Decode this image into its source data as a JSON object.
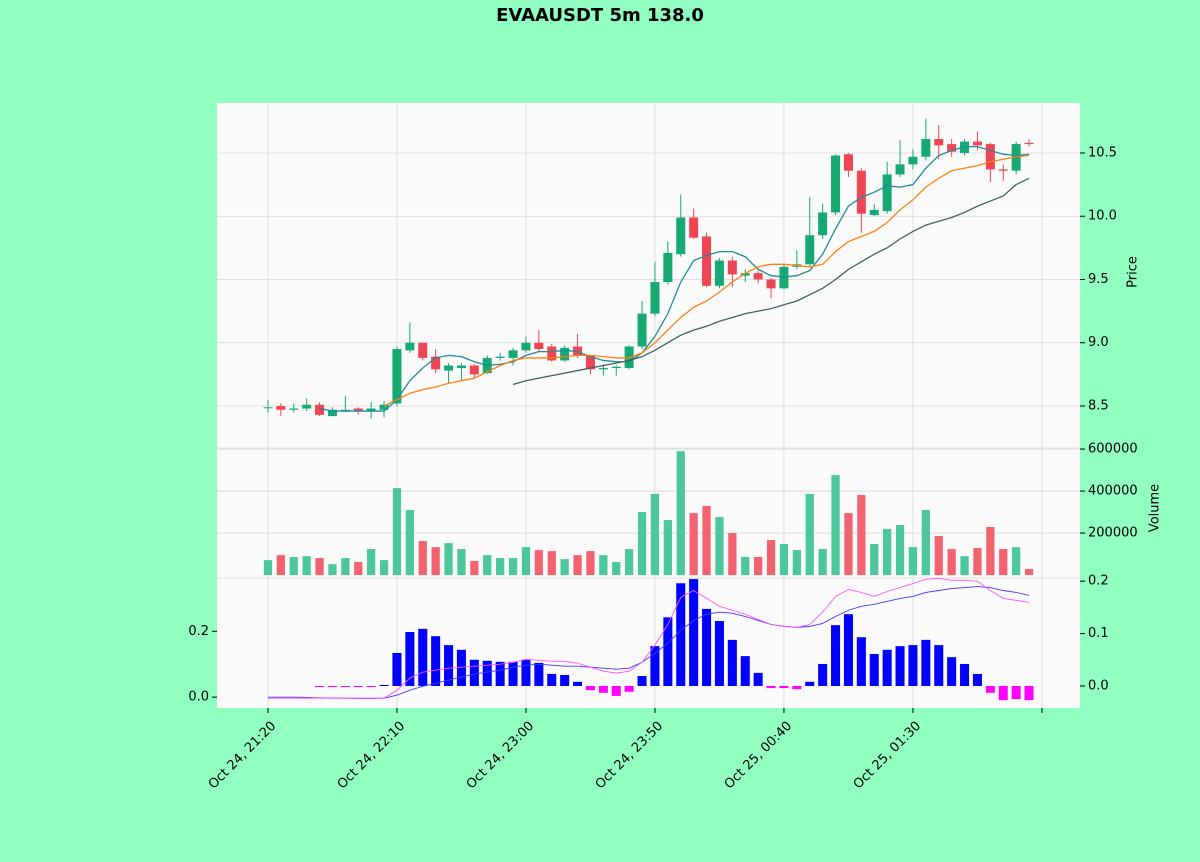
{
  "chart_data": {
    "type": "candlestick",
    "title": "EVAAUSDT 5m 138.0",
    "up_color": "#16a974",
    "down_color": "#ef4655",
    "grid": true,
    "xlim": [
      -3.95,
      62.95
    ],
    "xticks": [
      {
        "value": 0,
        "label": "Oct 24, 21:20"
      },
      {
        "value": 10,
        "label": "Oct 24, 22:10"
      },
      {
        "value": 20,
        "label": "Oct 24, 23:00"
      },
      {
        "value": 30,
        "label": "Oct 24, 23:50"
      },
      {
        "value": 40,
        "label": "Oct 25, 00:40"
      },
      {
        "value": 50,
        "label": "Oct 25, 01:30"
      },
      {
        "value": 60,
        "label": null
      }
    ],
    "ylabel": "Price",
    "ylim": [
      8.168,
      10.895
    ],
    "yticks": [
      8.5,
      {
        "value": 9,
        "label": "9.0"
      },
      9.5,
      {
        "value": 10,
        "label": "10.0"
      },
      10.5
    ],
    "open": [
      8.49,
      8.5,
      8.47,
      8.48,
      8.51,
      8.42,
      8.47,
      8.48,
      8.46,
      8.47,
      8.52,
      8.94,
      9.0,
      8.89,
      8.78,
      8.8,
      8.82,
      8.76,
      8.88,
      8.88,
      8.94,
      9.0,
      8.97,
      8.86,
      8.97,
      8.9,
      8.79,
      8.8,
      8.8,
      8.97,
      9.23,
      9.48,
      9.7,
      9.99,
      9.84,
      9.45,
      9.65,
      9.53,
      9.55,
      9.5,
      9.43,
      9.6,
      9.62,
      9.85,
      10.03,
      10.49,
      10.36,
      10.01,
      10.04,
      10.33,
      10.41,
      10.47,
      10.61,
      10.57,
      10.5,
      10.59,
      10.57,
      10.37,
      10.36,
      10.58
    ],
    "high": [
      8.55,
      8.52,
      8.52,
      8.56,
      8.53,
      8.49,
      8.58,
      8.49,
      8.53,
      8.54,
      8.97,
      9.16,
      9.0,
      8.95,
      8.84,
      8.84,
      8.83,
      8.9,
      8.92,
      8.96,
      9.05,
      9.1,
      8.99,
      8.98,
      9.07,
      8.9,
      8.83,
      8.82,
      8.98,
      9.33,
      9.64,
      9.8,
      10.17,
      10.06,
      9.87,
      9.67,
      9.68,
      9.58,
      9.57,
      9.51,
      9.62,
      9.73,
      10.15,
      10.1,
      10.49,
      10.5,
      10.38,
      10.1,
      10.43,
      10.6,
      10.53,
      10.77,
      10.72,
      10.61,
      10.61,
      10.67,
      10.58,
      10.41,
      10.59,
      10.61
    ],
    "low": [
      8.45,
      8.42,
      8.45,
      8.46,
      8.42,
      8.42,
      8.45,
      8.43,
      8.4,
      8.41,
      8.5,
      8.92,
      8.86,
      8.76,
      8.68,
      8.7,
      8.72,
      8.75,
      8.86,
      8.82,
      8.92,
      8.93,
      8.85,
      8.85,
      8.88,
      8.75,
      8.74,
      8.74,
      8.79,
      8.95,
      9.21,
      9.46,
      9.68,
      9.82,
      9.44,
      9.43,
      9.44,
      9.48,
      9.47,
      9.35,
      9.42,
      9.58,
      9.6,
      9.82,
      10.01,
      10.31,
      9.87,
      10.0,
      10.02,
      10.31,
      10.37,
      10.44,
      10.45,
      10.47,
      10.48,
      10.52,
      10.27,
      10.28,
      10.33,
      10.55
    ],
    "close": [
      8.49,
      8.47,
      8.48,
      8.51,
      8.43,
      8.47,
      8.47,
      8.46,
      8.48,
      8.51,
      8.95,
      9.0,
      8.88,
      8.79,
      8.82,
      8.82,
      8.75,
      8.88,
      8.89,
      8.94,
      9.0,
      8.95,
      8.86,
      8.96,
      8.9,
      8.79,
      8.8,
      8.81,
      8.97,
      9.23,
      9.48,
      9.71,
      9.99,
      9.83,
      9.45,
      9.65,
      9.54,
      9.55,
      9.5,
      9.43,
      9.6,
      9.62,
      9.85,
      10.03,
      10.48,
      10.36,
      10.02,
      10.05,
      10.33,
      10.41,
      10.47,
      10.61,
      10.56,
      10.51,
      10.59,
      10.56,
      10.37,
      10.36,
      10.57,
      10.57
    ],
    "moving_averages": [
      {
        "color": "#1f8a9a",
        "values": [
          null,
          null,
          null,
          null,
          8.48,
          8.46,
          8.46,
          8.46,
          8.46,
          8.46,
          8.55,
          8.7,
          8.8,
          8.88,
          8.9,
          8.89,
          8.85,
          8.82,
          8.83,
          8.85,
          8.9,
          8.93,
          8.93,
          8.94,
          8.93,
          8.89,
          8.86,
          8.85,
          8.85,
          8.92,
          9.05,
          9.23,
          9.48,
          9.65,
          9.69,
          9.72,
          9.72,
          9.68,
          9.58,
          9.53,
          9.52,
          9.53,
          9.57,
          9.7,
          9.9,
          10.08,
          10.15,
          10.19,
          10.24,
          10.23,
          10.25,
          10.38,
          10.48,
          10.52,
          10.55,
          10.55,
          10.52,
          10.49,
          10.48,
          10.49
        ]
      },
      {
        "color": "#ff7f0e",
        "values": [
          null,
          null,
          null,
          null,
          null,
          null,
          null,
          null,
          null,
          8.5,
          8.55,
          8.6,
          8.63,
          8.65,
          8.68,
          8.7,
          8.72,
          8.77,
          8.82,
          8.86,
          8.88,
          8.88,
          8.88,
          8.89,
          8.9,
          8.9,
          8.89,
          8.88,
          8.88,
          8.92,
          9.0,
          9.1,
          9.2,
          9.28,
          9.33,
          9.4,
          9.48,
          9.55,
          9.6,
          9.62,
          9.62,
          9.61,
          9.6,
          9.62,
          9.72,
          9.8,
          9.84,
          9.88,
          9.95,
          10.05,
          10.13,
          10.23,
          10.3,
          10.36,
          10.38,
          10.4,
          10.43,
          10.45,
          10.47,
          10.48
        ]
      },
      {
        "color": "#3f6262",
        "values": [
          null,
          null,
          null,
          null,
          null,
          null,
          null,
          null,
          null,
          null,
          null,
          null,
          null,
          null,
          null,
          null,
          null,
          null,
          null,
          8.67,
          8.7,
          8.72,
          8.74,
          8.76,
          8.78,
          8.8,
          8.82,
          8.84,
          8.86,
          8.89,
          8.94,
          9.0,
          9.06,
          9.1,
          9.13,
          9.17,
          9.2,
          9.23,
          9.25,
          9.27,
          9.3,
          9.33,
          9.38,
          9.43,
          9.5,
          9.58,
          9.64,
          9.7,
          9.75,
          9.82,
          9.88,
          9.93,
          9.96,
          9.99,
          10.03,
          10.08,
          10.12,
          10.16,
          10.25,
          10.3
        ]
      }
    ],
    "volume": {
      "ylabel": "Volume",
      "up_color": "#4cc79b",
      "down_color": "#f2636f",
      "ylim": [
        -14000,
        605000
      ],
      "yticks": [
        200000,
        400000,
        600000
      ],
      "values": [
        71000,
        95000,
        86000,
        90000,
        81000,
        52000,
        81000,
        62000,
        124000,
        71000,
        414000,
        310000,
        162000,
        133000,
        152000,
        124000,
        67000,
        95000,
        81000,
        81000,
        133000,
        119000,
        114000,
        76000,
        95000,
        114000,
        95000,
        62000,
        124000,
        300000,
        386000,
        262000,
        590000,
        295000,
        329000,
        276000,
        200000,
        86000,
        86000,
        167000,
        148000,
        119000,
        386000,
        124000,
        476000,
        295000,
        381000,
        148000,
        219000,
        238000,
        133000,
        310000,
        186000,
        124000,
        90000,
        129000,
        229000,
        124000,
        133000,
        29000
      ]
    },
    "macd": {
      "ylim": [
        -0.033,
        0.362
      ],
      "yticks": [
        {
          "value": 0,
          "label": "0.0"
        },
        0.2
      ],
      "y2lim": [
        -0.042,
        0.206
      ],
      "y2ticks": [
        {
          "value": 0,
          "label": "0.0"
        },
        0.1,
        0.2
      ],
      "series": [
        {
          "color": "#0000ff",
          "negative_color": "#ff00ff",
          "axis": "y2",
          "values": [
            0,
            0,
            0,
            0,
            -0.002,
            -0.002,
            -0.002,
            -0.002,
            -0.002,
            0.002,
            0.063,
            0.103,
            0.109,
            0.095,
            0.078,
            0.069,
            0.05,
            0.048,
            0.046,
            0.046,
            0.05,
            0.044,
            0.023,
            0.021,
            0.008,
            -0.008,
            -0.013,
            -0.019,
            -0.011,
            0.019,
            0.076,
            0.131,
            0.196,
            0.204,
            0.147,
            0.124,
            0.088,
            0.057,
            0.025,
            -0.004,
            -0.004,
            -0.006,
            0.008,
            0.042,
            0.116,
            0.137,
            0.093,
            0.061,
            0.069,
            0.076,
            0.078,
            0.088,
            0.078,
            0.055,
            0.042,
            0.023,
            -0.013,
            -0.027,
            -0.025,
            -0.027
          ]
        },
        {
          "color": "#3b3bff",
          "values": [
            0.0,
            0.0,
            0.0,
            -0.001,
            -0.002,
            -0.003,
            -0.003,
            -0.004,
            -0.004,
            -0.003,
            0.006,
            0.021,
            0.033,
            0.042,
            0.052,
            0.061,
            0.07,
            0.076,
            0.082,
            0.091,
            0.097,
            0.1,
            0.097,
            0.094,
            0.094,
            0.091,
            0.088,
            0.085,
            0.088,
            0.106,
            0.133,
            0.164,
            0.203,
            0.233,
            0.252,
            0.258,
            0.255,
            0.245,
            0.233,
            0.221,
            0.215,
            0.212,
            0.215,
            0.224,
            0.245,
            0.264,
            0.276,
            0.282,
            0.291,
            0.3,
            0.306,
            0.318,
            0.324,
            0.33,
            0.333,
            0.336,
            0.333,
            0.324,
            0.318,
            0.309
          ]
        },
        {
          "color": "#ff55ff",
          "values": [
            -0.003,
            -0.003,
            -0.003,
            -0.003,
            -0.003,
            -0.003,
            -0.003,
            -0.003,
            -0.003,
            -0.003,
            0.021,
            0.058,
            0.076,
            0.082,
            0.088,
            0.091,
            0.094,
            0.097,
            0.1,
            0.106,
            0.115,
            0.112,
            0.109,
            0.109,
            0.103,
            0.091,
            0.079,
            0.073,
            0.079,
            0.106,
            0.158,
            0.221,
            0.303,
            0.324,
            0.3,
            0.276,
            0.264,
            0.252,
            0.236,
            0.221,
            0.215,
            0.212,
            0.221,
            0.258,
            0.306,
            0.327,
            0.318,
            0.306,
            0.321,
            0.333,
            0.345,
            0.358,
            0.361,
            0.355,
            0.355,
            0.352,
            0.324,
            0.3,
            0.294,
            0.288
          ]
        }
      ]
    }
  }
}
